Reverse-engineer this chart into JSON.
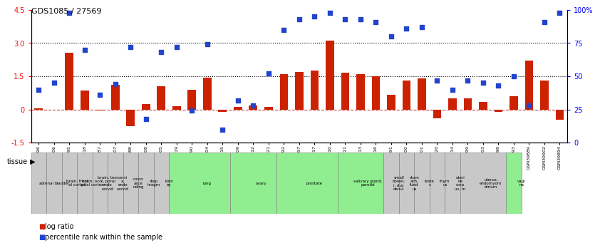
{
  "title": "GDS1085 / 27569",
  "samples": [
    "GSM39896",
    "GSM39906",
    "GSM39895",
    "GSM39918",
    "GSM39887",
    "GSM39907",
    "GSM39888",
    "GSM39908",
    "GSM39905",
    "GSM39919",
    "GSM39890",
    "GSM39904",
    "GSM39915",
    "GSM39909",
    "GSM39912",
    "GSM39921",
    "GSM39892",
    "GSM39897",
    "GSM39917",
    "GSM39910",
    "GSM39911",
    "GSM39913",
    "GSM39916",
    "GSM39891",
    "GSM39900",
    "GSM39901",
    "GSM39920",
    "GSM39914",
    "GSM39899",
    "GSM39903",
    "GSM39898",
    "GSM39893",
    "GSM39889",
    "GSM39902",
    "GSM39894"
  ],
  "log_ratio": [
    0.05,
    0.0,
    2.55,
    0.85,
    -0.05,
    1.1,
    -0.75,
    0.25,
    1.05,
    0.15,
    0.9,
    1.45,
    -0.1,
    0.1,
    0.18,
    0.12,
    1.6,
    1.7,
    1.75,
    3.1,
    1.65,
    1.6,
    1.5,
    0.65,
    1.3,
    1.4,
    -0.4,
    0.5,
    0.5,
    0.35,
    -0.12,
    0.6,
    2.2,
    1.3,
    -0.45
  ],
  "percentile_rank_pct": [
    40,
    45,
    98,
    70,
    36,
    44,
    72,
    18,
    68,
    72,
    24,
    74,
    10,
    32,
    28,
    52,
    85,
    93,
    95,
    98,
    93,
    93,
    91,
    80,
    86,
    87,
    47,
    40,
    47,
    45,
    43,
    50,
    28,
    91,
    98
  ],
  "tissues": [
    {
      "label": "adrenal",
      "start": 0,
      "end": 1,
      "color": "#c8c8c8"
    },
    {
      "label": "bladder",
      "start": 1,
      "end": 2,
      "color": "#c8c8c8"
    },
    {
      "label": "brain, front\nal cortex",
      "start": 2,
      "end": 3,
      "color": "#c8c8c8"
    },
    {
      "label": "brain, occi\npital cortex",
      "start": 3,
      "end": 4,
      "color": "#c8c8c8"
    },
    {
      "label": "brain, tem\nx, poral\nendo\ncervid",
      "start": 4,
      "end": 5,
      "color": "#c8c8c8"
    },
    {
      "label": "cervi\nx,\nendo\ncervid",
      "start": 5,
      "end": 6,
      "color": "#c8c8c8"
    },
    {
      "label": "colon\nasce\nnding",
      "start": 6,
      "end": 7,
      "color": "#c8c8c8"
    },
    {
      "label": "diap\nhragm",
      "start": 7,
      "end": 8,
      "color": "#c8c8c8"
    },
    {
      "label": "kidn\ney",
      "start": 8,
      "end": 9,
      "color": "#c8c8c8"
    },
    {
      "label": "lung",
      "start": 9,
      "end": 13,
      "color": "#90ee90"
    },
    {
      "label": "ovary",
      "start": 13,
      "end": 16,
      "color": "#90ee90"
    },
    {
      "label": "prostate",
      "start": 16,
      "end": 20,
      "color": "#90ee90"
    },
    {
      "label": "salivary gland,\nparotid",
      "start": 20,
      "end": 23,
      "color": "#90ee90"
    },
    {
      "label": "small\nbowel,\ni, duc\ndenul",
      "start": 23,
      "end": 24,
      "color": "#c8c8c8"
    },
    {
      "label": "stom\nach,\nfund\nus",
      "start": 24,
      "end": 25,
      "color": "#c8c8c8"
    },
    {
      "label": "teste\ns",
      "start": 25,
      "end": 26,
      "color": "#c8c8c8"
    },
    {
      "label": "thym\nus",
      "start": 26,
      "end": 27,
      "color": "#c8c8c8"
    },
    {
      "label": "uteri\nne\ncorp\nus, m",
      "start": 27,
      "end": 28,
      "color": "#c8c8c8"
    },
    {
      "label": "uterus,\nendomyom\netrium",
      "start": 28,
      "end": 31,
      "color": "#c8c8c8"
    },
    {
      "label": "vagi\nna",
      "start": 31,
      "end": 32,
      "color": "#90ee90"
    }
  ],
  "ymin": -1.5,
  "ymax": 4.5,
  "y2min": 0,
  "y2max": 100,
  "bar_color": "#cc2200",
  "dot_color": "#2244cc",
  "zero_line_color": "#cc4444",
  "background_color": "#ffffff",
  "dotted_lines": [
    1.5,
    3.0
  ]
}
